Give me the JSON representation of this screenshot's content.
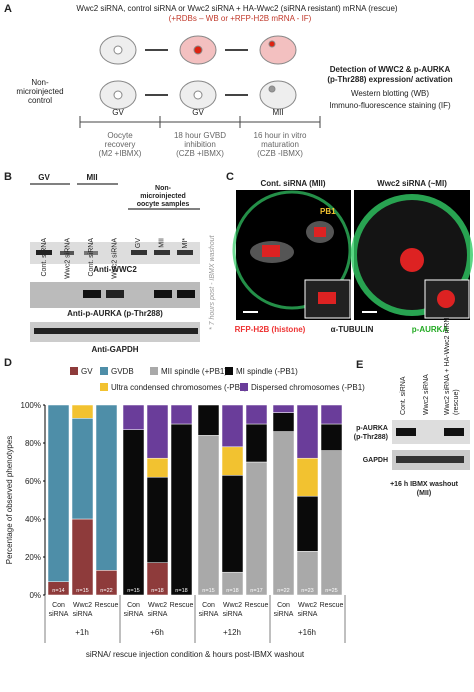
{
  "panel_a": {
    "letter": "A",
    "heading": "Wwc2 siRNA, control siRNA or Wwc2 siRNA + HA-Wwc2 (siRNA resistant) mRNA (rescue)",
    "subheading": "(+RDBs – WB or +RFP-H2B mRNA - IF)",
    "control": [
      "Non-",
      "microinjected",
      "control"
    ],
    "stages": [
      "GV",
      "GV",
      "MII"
    ],
    "detection": [
      "Detection of WWC2 & p-AURKA",
      "(p-Thr288) expression/ activation"
    ],
    "methods": [
      "Western blotting (WB)",
      "Immuno-fluorescence staining (IF)"
    ],
    "timeline": [
      [
        "Oocyte",
        "recovery",
        "(M2 +IBMX)"
      ],
      [
        "18 hour GVBD",
        "inhibition",
        "(CZB +IBMX)"
      ],
      [
        "16 hour in vitro",
        "maturation",
        "(CZB -IBMX)"
      ]
    ]
  },
  "panel_b": {
    "letter": "B",
    "groups": [
      "GV",
      "MII"
    ],
    "non_injected": [
      "Non-",
      "microinjected",
      "oocyte samples"
    ],
    "lanes": [
      "Cont. siRNA",
      "Wwc2 siRNA",
      "Cont. siRNA",
      "Wwc2 siRNA",
      "GV",
      "MII",
      "MI*"
    ],
    "blots": [
      "Anti-WWC2",
      "Anti-p-AURKA (p-Thr288)",
      "Anti-GAPDH"
    ],
    "note": "* 7 hours post - IBMX washout"
  },
  "panel_c": {
    "letter": "C",
    "titles": [
      "Cont. siRNA (MII)",
      "Wwc2 siRNA (~MI)"
    ],
    "pb1": "PB1",
    "legend": [
      "RFP-H2B (histone)",
      "α-TUBULIN",
      "p-AURKA"
    ]
  },
  "panel_e": {
    "letter": "E",
    "lanes": [
      "Cont. siRNA",
      "Wwc2 siRNA",
      "Wwc2 siRNA + HA-Wwc2 mRNA",
      "(rescue)"
    ],
    "blots": [
      [
        "p-AURKA",
        "(p-Thr288)"
      ],
      [
        "GAPDH"
      ]
    ],
    "footer": [
      "+16 h IBMX washout",
      "(MII)"
    ]
  },
  "chart_data": {
    "type": "stacked_bar",
    "letter": "D",
    "ylabel": "Percentage of observed phenotypes",
    "xlabel": "siRNA/ rescue injection condition & hours post-IBMX washout",
    "categories": [
      "Con siRNA",
      "Wwc2 siRNA",
      "Rescue",
      "Con siRNA",
      "Wwc2 siRNA",
      "Rescue",
      "Con siRNA",
      "Wwc2 siRNA",
      "Rescue",
      "Con siRNA",
      "Wwc2 siRNA",
      "Rescue"
    ],
    "groups": [
      "+1h",
      "+6h",
      "+12h",
      "+16h"
    ],
    "n_labels": [
      "n=14",
      "n=15",
      "n=22",
      "n=15",
      "n=18",
      "n=18",
      "n=15",
      "n=18",
      "n=17",
      "n=22",
      "n=23",
      "n=25"
    ],
    "series": [
      {
        "name": "GV",
        "color": "#8e3b3b",
        "values": [
          7,
          40,
          13,
          0,
          17,
          0,
          0,
          0,
          0,
          0,
          0,
          0
        ]
      },
      {
        "name": "GVDB",
        "color": "#4e8ea8",
        "values": [
          93,
          53,
          87,
          0,
          0,
          0,
          0,
          0,
          0,
          0,
          0,
          0
        ]
      },
      {
        "name": "MII spindle (+PB1)",
        "color": "#a9a9a9",
        "values": [
          0,
          0,
          0,
          0,
          0,
          0,
          84,
          12,
          70,
          86,
          23,
          76
        ]
      },
      {
        "name": "MI spindle (-PB1)",
        "color": "#0a0a0a",
        "values": [
          0,
          0,
          0,
          87,
          45,
          90,
          16,
          51,
          20,
          10,
          29,
          14
        ]
      },
      {
        "name": "Ultra condensed chromosomes (-PB1)",
        "color": "#f2c230",
        "values": [
          0,
          7,
          0,
          0,
          10,
          0,
          0,
          15,
          0,
          0,
          20,
          0
        ]
      },
      {
        "name": "Dispersed chromosomes (-PB1)",
        "color": "#6a3d9a",
        "values": [
          0,
          0,
          0,
          13,
          28,
          10,
          0,
          22,
          10,
          4,
          28,
          10
        ]
      }
    ],
    "ylim": [
      0,
      100
    ],
    "yticks": [
      {
        "value": 0,
        "label": "0%"
      },
      {
        "value": 20,
        "label": "20%"
      },
      {
        "value": 40,
        "label": "40%"
      },
      {
        "value": 60,
        "label": "60%"
      },
      {
        "value": 80,
        "label": "80%"
      },
      {
        "value": 100,
        "label": "100%"
      }
    ]
  }
}
